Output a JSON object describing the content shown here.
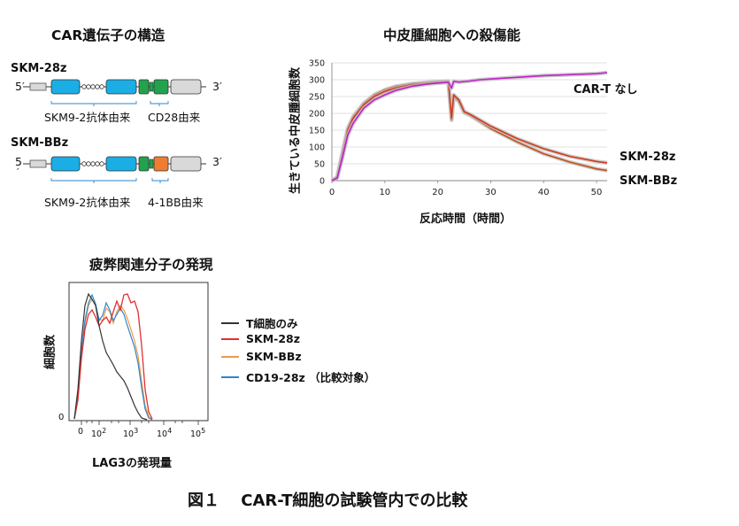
{
  "construct": {
    "title": "CAR遺伝子の構造",
    "car1": {
      "name": "SKM-28z",
      "end5": "5′",
      "end3": "3′",
      "label_a": "SKM9-2抗体由来",
      "label_b": "CD28由来"
    },
    "car2": {
      "name": "SKM-BBz",
      "end5": "5",
      "end5_mark": "′",
      "end3": "3′",
      "label_a": "SKM9-2抗体由来",
      "label_b": "4-1BB由来"
    },
    "colors": {
      "scfv": "#1aaee5",
      "cd28": "#23a24d",
      "bb41": "#ee7d33",
      "zeta": "#d9d9d9",
      "leader": "#d9d9d9"
    }
  },
  "killing": {
    "title": "中皮腫細胞への殺傷能",
    "annotations": [
      "CAR-T なし",
      "SKM-28z",
      "SKM-BBz"
    ]
  },
  "exhaustion": {
    "title": "疲弊関連分子の発現",
    "ylabel": "細胞数",
    "xlabel": "LAG3の発現量",
    "y_zero": "0",
    "x_ticks": [
      {
        "base": "0",
        "exp": ""
      },
      {
        "base": "10",
        "exp": "2"
      },
      {
        "base": "10",
        "exp": "3"
      },
      {
        "base": "10",
        "exp": "4"
      },
      {
        "base": "10",
        "exp": "5"
      }
    ],
    "legend": [
      {
        "label": "T細胞のみ",
        "color": "#333333"
      },
      {
        "label": "SKM-28z",
        "color": "#e03030"
      },
      {
        "label": "SKM-BBz",
        "color": "#ee9a4a"
      },
      {
        "label": "CD19-28z （比較対象）",
        "color": "#2f86c8"
      }
    ]
  },
  "figure_caption": "図１　 CAR-T細胞の試験管内での比較",
  "chart_data": {
    "type": "line",
    "title": "中皮腫細胞への殺傷能",
    "xlabel": "反応時間（時間）",
    "ylabel": "生きている中皮腫細胞数",
    "xlim": [
      0,
      52
    ],
    "ylim": [
      0,
      350
    ],
    "xticks": [
      0,
      10,
      20,
      30,
      40,
      50
    ],
    "yticks": [
      0,
      50,
      100,
      150,
      200,
      250,
      300,
      350
    ],
    "grid": "horizontal",
    "series": [
      {
        "name": "CAR-T なし",
        "color": "#c020c8",
        "x": [
          0,
          1,
          2,
          3,
          4,
          6,
          8,
          10,
          12,
          15,
          18,
          20,
          22,
          22.6,
          23,
          24,
          26,
          28,
          30,
          35,
          40,
          45,
          50,
          52
        ],
        "y": [
          0,
          8,
          70,
          135,
          170,
          215,
          240,
          255,
          268,
          280,
          287,
          290,
          292,
          275,
          295,
          293,
          296,
          300,
          302,
          307,
          312,
          315,
          318,
          321
        ]
      },
      {
        "name": "SKM-28z",
        "color": "#d03a1a",
        "x": [
          0,
          1,
          2,
          3,
          4,
          6,
          8,
          10,
          12,
          15,
          18,
          20,
          22,
          22.6,
          23,
          24,
          25,
          26,
          28,
          30,
          35,
          40,
          45,
          50,
          52
        ],
        "y": [
          0,
          10,
          80,
          150,
          185,
          225,
          250,
          265,
          275,
          285,
          290,
          293,
          295,
          185,
          255,
          240,
          205,
          198,
          180,
          162,
          125,
          95,
          72,
          57,
          53
        ]
      },
      {
        "name": "SKM-BBz",
        "color": "#c05018",
        "x": [
          0,
          1,
          2,
          3,
          4,
          6,
          8,
          10,
          12,
          15,
          18,
          20,
          22,
          22.6,
          23,
          24,
          25,
          26,
          28,
          30,
          35,
          40,
          45,
          50,
          52
        ],
        "y": [
          0,
          10,
          85,
          155,
          190,
          230,
          255,
          270,
          280,
          288,
          292,
          294,
          295,
          180,
          250,
          235,
          202,
          195,
          175,
          155,
          115,
          80,
          55,
          35,
          30
        ]
      }
    ]
  }
}
